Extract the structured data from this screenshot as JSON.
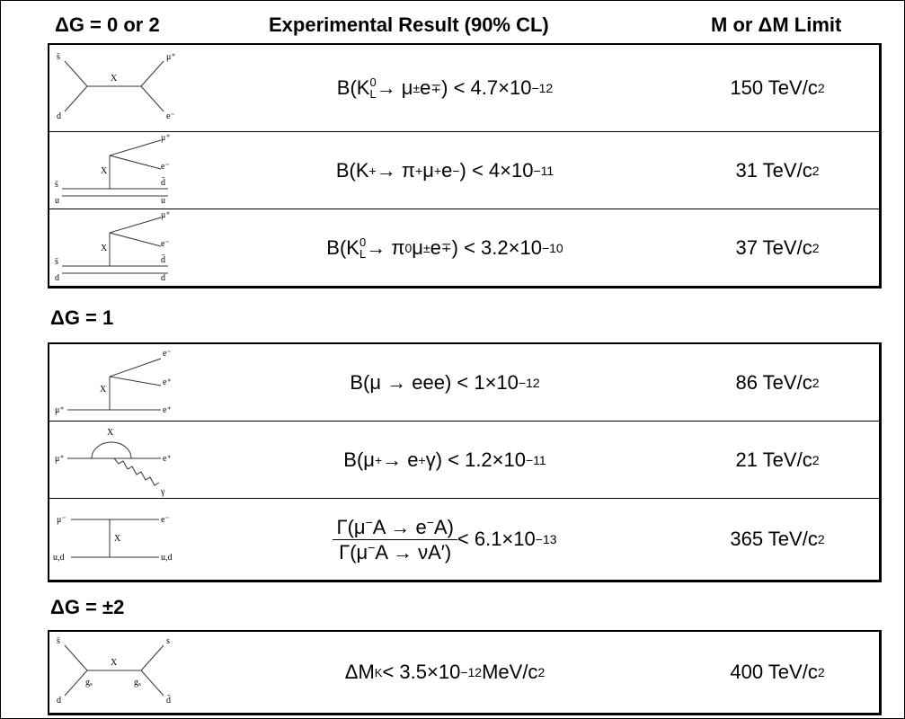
{
  "headers": [
    "ΔG = 0 or 2",
    "Experimental Result (90% CL)",
    "M or ΔM Limit"
  ],
  "sections": [
    {
      "rows": [
        {
          "diagram": [
            "s̄",
            "d",
            "X",
            "μ⁺",
            "e⁻"
          ],
          "result": [
            {
              "t": "B(K",
              "sup": "0",
              "sub": "L"
            },
            {
              "t": " → μ",
              "sup": "±"
            },
            {
              "t": "e",
              "sup": "∓"
            },
            {
              "t": ") < 4.7×10",
              "sup": "−12"
            }
          ],
          "limit": [
            {
              "t": "150 TeV/c",
              "sup": "2"
            }
          ]
        },
        {
          "diagram": [
            "μ⁺",
            "X",
            "e⁻",
            "s̄",
            "d̄",
            "u",
            "u"
          ],
          "result": [
            {
              "t": "B(K",
              "sup": "+"
            },
            {
              "t": " → π",
              "sup": "+"
            },
            {
              "t": "μ",
              "sup": "+"
            },
            {
              "t": "e",
              "sup": "−"
            },
            {
              "t": ") < 4×10",
              "sup": "−11"
            }
          ],
          "limit": [
            {
              "t": "31 TeV/c",
              "sup": "2"
            }
          ]
        },
        {
          "diagram": [
            "μ⁺",
            "X",
            "e⁻",
            "s̄",
            "d̄",
            "d",
            "d"
          ],
          "result": [
            {
              "t": "B(K",
              "sup": "0",
              "sub": "L"
            },
            {
              "t": " → π",
              "sup": "0"
            },
            {
              "t": "μ",
              "sup": "±"
            },
            {
              "t": "e",
              "sup": "∓"
            },
            {
              "t": ") < 3.2×10",
              "sup": "−10"
            }
          ],
          "limit": [
            {
              "t": "37 TeV/c",
              "sup": "2"
            }
          ]
        }
      ]
    },
    {
      "title": "ΔG = 1",
      "rows": [
        {
          "diagram": [
            "e⁻",
            "X",
            "e⁺",
            "μ⁺",
            "e⁺"
          ],
          "result": [
            {
              "t": "B(μ → eee) < 1×10",
              "sup": "−12"
            }
          ],
          "limit": [
            {
              "t": "86 TeV/c",
              "sup": "2"
            }
          ]
        },
        {
          "diagram": [
            "X",
            "μ⁺",
            "e⁺",
            "γ"
          ],
          "result": [
            {
              "t": "B(μ",
              "sup": "+"
            },
            {
              "t": " → e",
              "sup": "+"
            },
            {
              "t": "γ) < 1.2×10",
              "sup": "−11"
            }
          ],
          "limit": [
            {
              "t": "21 TeV/c",
              "sup": "2"
            }
          ]
        },
        {
          "diagram": [
            "μ⁻",
            "e⁻",
            "X",
            "u,d",
            "u,d"
          ],
          "result": {
            "num": [
              {
                "t": "Γ(μ",
                "sup": "−"
              },
              {
                "t": "A → e",
                "sup": "−"
              },
              {
                "t": "A)"
              }
            ],
            "den": [
              {
                "t": "Γ(μ",
                "sup": "−"
              },
              {
                "t": "A → νA′)"
              }
            ],
            "after": [
              {
                "t": " < 6.1×10",
                "sup": "−13"
              }
            ]
          },
          "limit": [
            {
              "t": "365 TeV/c",
              "sup": "2"
            }
          ]
        }
      ]
    },
    {
      "title": "ΔG = ±2",
      "rows": [
        {
          "diagram": [
            "s̄",
            "s",
            "X",
            "gₓ",
            "gₓ",
            "d",
            "d̄"
          ],
          "result": [
            {
              "t": "ΔM",
              "sub": "K"
            },
            {
              "t": " < 3.5×10",
              "sup": "−12"
            },
            {
              "t": " MeV/c",
              "sup": "2"
            }
          ],
          "limit": [
            {
              "t": "400 TeV/c",
              "sup": "2"
            }
          ]
        }
      ]
    }
  ]
}
